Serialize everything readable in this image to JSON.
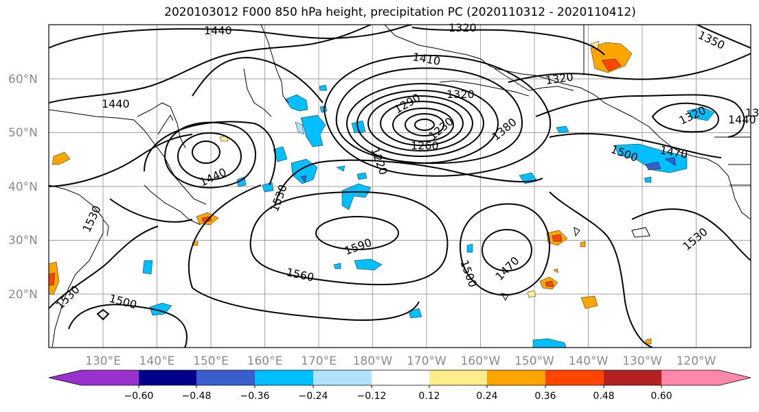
{
  "title": "2020103012 F000 850 hPa height, precipitation PC (2020110312 - 2020110412)",
  "lon_labels": [
    "130°E",
    "140°E",
    "150°E",
    "160°E",
    "170°E",
    "180°W",
    "170°W",
    "160°W",
    "150°W",
    "140°W",
    "130°W",
    "120°W"
  ],
  "lat_labels": [
    "60°N",
    "50°N",
    "40°N",
    "30°N",
    "20°N"
  ],
  "contour_labels": [
    "1440",
    "1320",
    "1410",
    "1350",
    "1320",
    "1320",
    "1320",
    "1440",
    "1290",
    "1260",
    "1230",
    "1220",
    "1380",
    "1500",
    "1470",
    "1440",
    "1320",
    "1440",
    "1530",
    "1530",
    "1590",
    "1560",
    "1500",
    "1470",
    "1500",
    "1530",
    "1530",
    "1500"
  ],
  "colorbar": {
    "ticks": [
      "−0.60",
      "−0.48",
      "−0.36",
      "−0.24",
      "−0.12",
      "0.12",
      "0.24",
      "0.36",
      "0.48",
      "0.60"
    ],
    "colors": [
      "#9932cc",
      "#00008b",
      "#3a5fcd",
      "#00bfff",
      "#b0e2ff",
      "#ffffff",
      "#ffec8b",
      "#ffa500",
      "#ff4500",
      "#b22222",
      "#ff88aa"
    ]
  },
  "colors": {
    "positive_light": "#ffec8b",
    "positive_mid": "#ffa500",
    "positive_strong": "#ff4500",
    "negative_light": "#b0e2ff",
    "negative_mid": "#00bfff",
    "negative_strong": "#3a5fcd"
  }
}
